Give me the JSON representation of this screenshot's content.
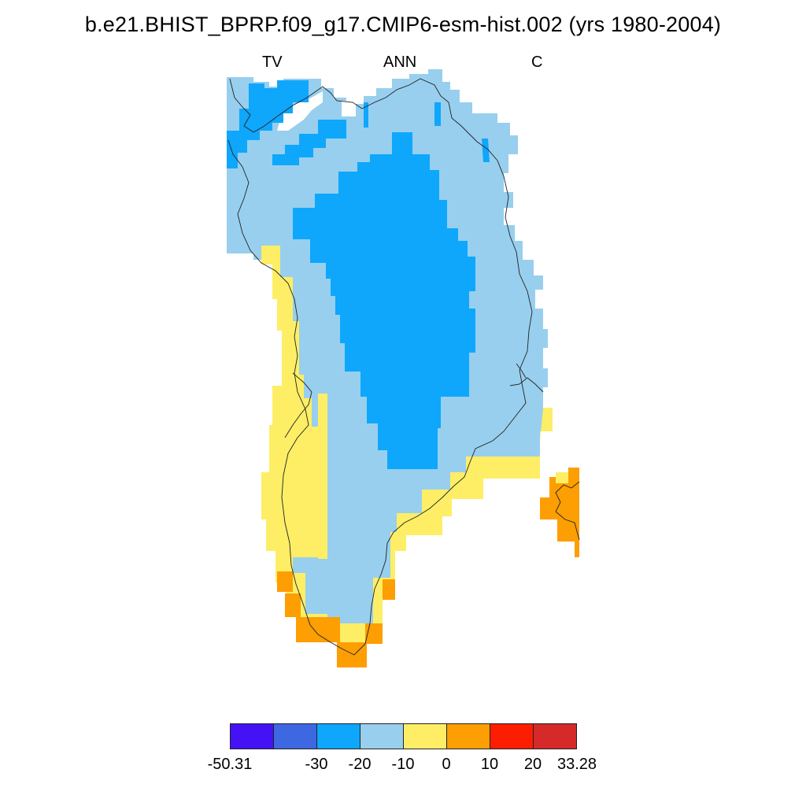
{
  "header": {
    "title": "b.e21.BHIST_BPRP.f09_g17.CMIP6-esm-hist.002 (yrs 1980-2004)",
    "left_label": "TV",
    "center_label": "ANN",
    "right_label": "C"
  },
  "colors": {
    "c1": "#4412f5",
    "c2": "#3e67e2",
    "c3": "#0ea7fc",
    "c4": "#98cfee",
    "c5": "#fdee66",
    "c6": "#fd9e03",
    "c7": "#fd1e02",
    "c8": "#d62a2a",
    "coast": "#222222"
  },
  "colorbar": {
    "boxes": [
      "#4412f5",
      "#3e67e2",
      "#0ea7fc",
      "#98cfee",
      "#fdee66",
      "#fd9e03",
      "#fd1e02",
      "#d62a2a"
    ],
    "labels": [
      "-50.31",
      "-30",
      "-20",
      "-10",
      "0",
      "10",
      "20",
      "33.28"
    ]
  }
}
